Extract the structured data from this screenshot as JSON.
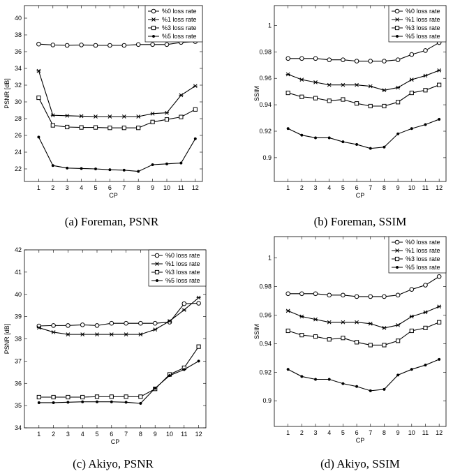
{
  "colors": {
    "line": "#000000",
    "background": "#ffffff"
  },
  "chart_data": [
    {
      "type": "line",
      "caption": "(a) Foreman, PSNR",
      "xlabel": "CP",
      "ylabel": "PSNR [dB]",
      "x": [
        1,
        2,
        3,
        4,
        5,
        6,
        7,
        8,
        9,
        10,
        11,
        12
      ],
      "xlim": [
        0,
        12.5
      ],
      "ylim": [
        20.5,
        41.5
      ],
      "yticks": [
        22,
        24,
        26,
        28,
        30,
        32,
        34,
        36,
        38,
        40
      ],
      "ytick_labels": [
        "22",
        "24",
        "26",
        "28",
        "30",
        "32",
        "34",
        "36",
        "38",
        "40"
      ],
      "legend_position": "top-right",
      "grid": false,
      "series": [
        {
          "name": "%0 loss rate",
          "marker": "circle",
          "values": [
            36.9,
            36.8,
            36.75,
            36.8,
            36.75,
            36.75,
            36.75,
            36.85,
            36.85,
            36.85,
            37.1,
            37.2
          ]
        },
        {
          "name": "%1 loss rate",
          "marker": "x",
          "values": [
            33.7,
            28.4,
            28.35,
            28.3,
            28.25,
            28.25,
            28.25,
            28.25,
            28.6,
            28.7,
            30.8,
            31.9
          ]
        },
        {
          "name": "%3 loss rate",
          "marker": "square",
          "values": [
            30.5,
            27.2,
            27.0,
            26.95,
            26.95,
            26.9,
            26.9,
            26.9,
            27.6,
            27.9,
            28.2,
            29.1
          ]
        },
        {
          "name": "%5 loss rate",
          "marker": "dot",
          "values": [
            25.8,
            22.4,
            22.1,
            22.05,
            22.0,
            21.9,
            21.85,
            21.7,
            22.5,
            22.6,
            22.7,
            25.6
          ]
        }
      ]
    },
    {
      "type": "line",
      "caption": "(b) Foreman, SSIM",
      "xlabel": "CP",
      "ylabel": "SSIM",
      "x": [
        1,
        2,
        3,
        4,
        5,
        6,
        7,
        8,
        9,
        10,
        11,
        12
      ],
      "xlim": [
        0,
        12.5
      ],
      "ylim": [
        0.882,
        1.015
      ],
      "yticks": [
        0.9,
        0.92,
        0.94,
        0.96,
        0.98,
        1.0
      ],
      "ytick_labels": [
        "0.9",
        "0.92",
        "0.94",
        "0.96",
        "0.98",
        "1"
      ],
      "legend_position": "top-right",
      "grid": false,
      "series": [
        {
          "name": "%0 loss rate",
          "marker": "circle",
          "values": [
            0.975,
            0.975,
            0.975,
            0.974,
            0.974,
            0.973,
            0.973,
            0.973,
            0.974,
            0.978,
            0.981,
            0.987
          ]
        },
        {
          "name": "%1 loss rate",
          "marker": "x",
          "values": [
            0.963,
            0.959,
            0.957,
            0.955,
            0.955,
            0.955,
            0.954,
            0.951,
            0.953,
            0.959,
            0.962,
            0.966
          ]
        },
        {
          "name": "%3 loss rate",
          "marker": "square",
          "values": [
            0.949,
            0.946,
            0.945,
            0.943,
            0.944,
            0.941,
            0.939,
            0.939,
            0.942,
            0.949,
            0.951,
            0.955
          ]
        },
        {
          "name": "%5 loss rate",
          "marker": "dot",
          "values": [
            0.922,
            0.917,
            0.915,
            0.915,
            0.912,
            0.91,
            0.907,
            0.908,
            0.918,
            0.922,
            0.925,
            0.929
          ]
        }
      ]
    },
    {
      "type": "line",
      "caption": "(c) Akiyo, PSNR",
      "xlabel": "CP",
      "ylabel": "PSNR [dB]",
      "x": [
        1,
        2,
        3,
        4,
        5,
        6,
        7,
        8,
        9,
        10,
        11,
        12
      ],
      "xlim": [
        0,
        12.5
      ],
      "ylim": [
        34,
        42
      ],
      "yticks": [
        34,
        35,
        36,
        37,
        38,
        39,
        40,
        41,
        42
      ],
      "ytick_labels": [
        "34",
        "35",
        "36",
        "37",
        "38",
        "39",
        "40",
        "41",
        "42"
      ],
      "legend_position": "top-right",
      "grid": false,
      "series": [
        {
          "name": "%0 loss rate",
          "marker": "circle",
          "values": [
            38.58,
            38.6,
            38.6,
            38.63,
            38.6,
            38.7,
            38.7,
            38.7,
            38.7,
            38.75,
            39.58,
            39.6
          ]
        },
        {
          "name": "%1 loss rate",
          "marker": "x",
          "values": [
            38.5,
            38.3,
            38.2,
            38.2,
            38.2,
            38.2,
            38.2,
            38.2,
            38.42,
            38.8,
            39.3,
            39.85
          ]
        },
        {
          "name": "%3 loss rate",
          "marker": "square",
          "values": [
            35.38,
            35.38,
            35.38,
            35.38,
            35.4,
            35.4,
            35.4,
            35.4,
            35.75,
            36.4,
            36.7,
            37.65
          ]
        },
        {
          "name": "%5 loss rate",
          "marker": "dot",
          "values": [
            35.13,
            35.13,
            35.15,
            35.17,
            35.17,
            35.17,
            35.15,
            35.1,
            35.78,
            36.35,
            36.62,
            37.0
          ]
        }
      ]
    },
    {
      "type": "line",
      "caption": "(d) Akiyo, SSIM",
      "xlabel": "CP",
      "ylabel": "SSIM",
      "x": [
        1,
        2,
        3,
        4,
        5,
        6,
        7,
        8,
        9,
        10,
        11,
        12
      ],
      "xlim": [
        0,
        12.5
      ],
      "ylim": [
        0.882,
        1.015
      ],
      "yticks": [
        0.9,
        0.92,
        0.94,
        0.96,
        0.98,
        1.0
      ],
      "ytick_labels": [
        "0.9",
        "0.92",
        "0.94",
        "0.96",
        "0.98",
        "1"
      ],
      "legend_position": "top-right",
      "grid": false,
      "series": [
        {
          "name": "%0 loss rate",
          "marker": "circle",
          "values": [
            0.975,
            0.975,
            0.975,
            0.974,
            0.974,
            0.973,
            0.973,
            0.973,
            0.974,
            0.978,
            0.981,
            0.987
          ]
        },
        {
          "name": "%1 loss rate",
          "marker": "x",
          "values": [
            0.963,
            0.959,
            0.957,
            0.955,
            0.955,
            0.955,
            0.954,
            0.951,
            0.953,
            0.959,
            0.962,
            0.966
          ]
        },
        {
          "name": "%3 loss rate",
          "marker": "square",
          "values": [
            0.949,
            0.946,
            0.945,
            0.943,
            0.944,
            0.941,
            0.939,
            0.939,
            0.942,
            0.949,
            0.951,
            0.955
          ]
        },
        {
          "name": "%5 loss rate",
          "marker": "dot",
          "values": [
            0.922,
            0.917,
            0.915,
            0.915,
            0.912,
            0.91,
            0.907,
            0.908,
            0.918,
            0.922,
            0.925,
            0.929
          ]
        }
      ]
    }
  ]
}
